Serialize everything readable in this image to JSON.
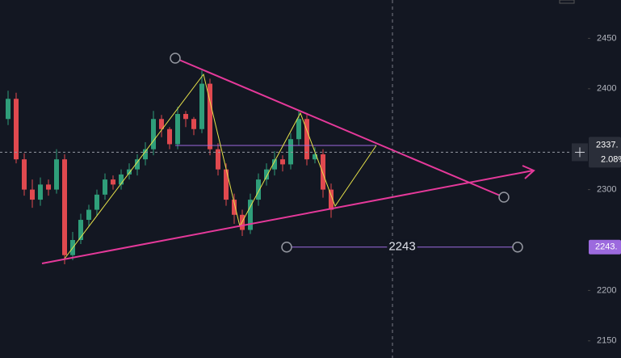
{
  "chart_data": {
    "type": "candlestick",
    "open": [
      2370,
      2390,
      2330,
      2300,
      2290,
      2305,
      2300,
      2330,
      2235,
      2250,
      2270,
      2280,
      2295,
      2310,
      2305,
      2315,
      2320,
      2330,
      2340,
      2370,
      2360,
      2345,
      2375,
      2370,
      2360,
      2405,
      2340,
      2320,
      2290,
      2275,
      2260,
      2290,
      2310,
      2320,
      2330,
      2325,
      2350,
      2370,
      2330,
      2335,
      2300
    ],
    "high": [
      2398,
      2396,
      2336,
      2310,
      2312,
      2310,
      2340,
      2335,
      2258,
      2276,
      2285,
      2300,
      2316,
      2314,
      2320,
      2326,
      2335,
      2347,
      2378,
      2374,
      2362,
      2382,
      2378,
      2372,
      2418,
      2410,
      2346,
      2326,
      2296,
      2280,
      2296,
      2316,
      2326,
      2338,
      2334,
      2356,
      2378,
      2374,
      2342,
      2340,
      2306
    ],
    "low": [
      2364,
      2326,
      2294,
      2282,
      2284,
      2294,
      2296,
      2226,
      2230,
      2246,
      2264,
      2274,
      2290,
      2300,
      2300,
      2310,
      2314,
      2324,
      2334,
      2352,
      2340,
      2340,
      2362,
      2354,
      2356,
      2334,
      2314,
      2284,
      2266,
      2254,
      2256,
      2284,
      2304,
      2314,
      2318,
      2320,
      2344,
      2324,
      2326,
      2292,
      2272
    ],
    "close": [
      2390,
      2330,
      2300,
      2290,
      2305,
      2300,
      2330,
      2235,
      2250,
      2270,
      2280,
      2295,
      2310,
      2305,
      2315,
      2320,
      2330,
      2340,
      2370,
      2360,
      2345,
      2375,
      2370,
      2360,
      2405,
      2340,
      2320,
      2290,
      2275,
      2260,
      2290,
      2310,
      2320,
      2330,
      2325,
      2350,
      2370,
      2330,
      2335,
      2300,
      2280
    ],
    "up_color": "#2f9e7a",
    "down_color": "#e0494f",
    "ylim": [
      2133,
      2488
    ],
    "yticks": [
      2150,
      2200,
      2300,
      2400,
      2450
    ],
    "price_line": {
      "value": 2337,
      "label": "2337.",
      "change": "2.08%"
    },
    "horizontal_line": {
      "value": 2243,
      "label": "2243",
      "badge": "2243."
    }
  }
}
